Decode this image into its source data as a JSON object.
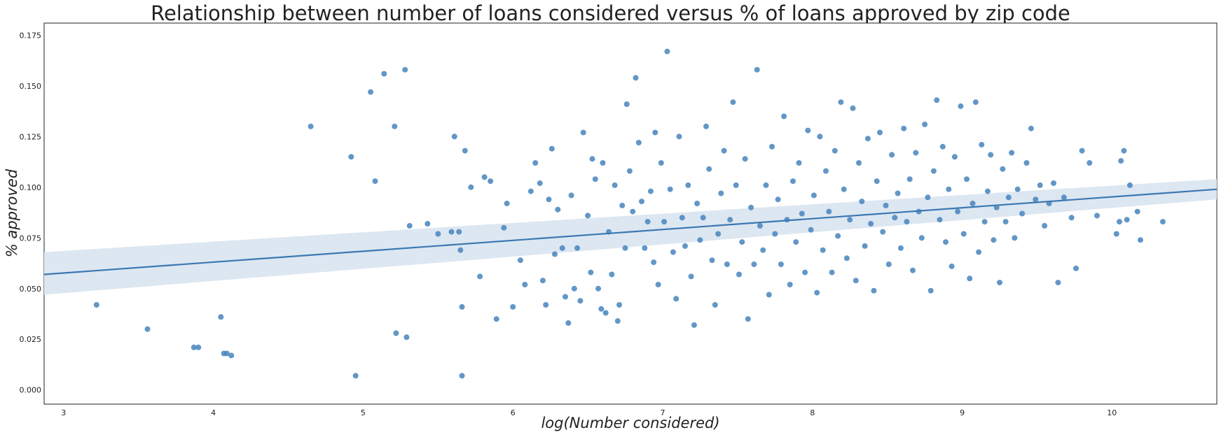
{
  "chart_data": {
    "type": "scatter",
    "title": "Relationship between number of loans considered versus % of loans approved by zip code",
    "xlabel": "log(Number considered)",
    "ylabel": "% approved",
    "xlim": [
      2.87,
      10.7
    ],
    "ylim": [
      -0.007,
      0.181
    ],
    "xticks": [
      "3",
      "4",
      "5",
      "6",
      "7",
      "8",
      "9",
      "10"
    ],
    "yticks": [
      "0.000",
      "0.025",
      "0.050",
      "0.075",
      "0.100",
      "0.125",
      "0.150",
      "0.175"
    ],
    "grid": false,
    "point_color": "#4c88bf",
    "line_color": "#3b78b2",
    "band_color": "#dde7f1",
    "regression": {
      "x": [
        2.87,
        10.7
      ],
      "y": [
        0.057,
        0.099
      ],
      "ci_lower": [
        0.047,
        0.094
      ],
      "ci_upper": [
        0.068,
        0.104
      ]
    },
    "series": [
      {
        "points": [
          [
            3.22,
            0.042
          ],
          [
            3.56,
            0.03
          ],
          [
            3.87,
            0.021
          ],
          [
            3.9,
            0.021
          ],
          [
            4.05,
            0.036
          ],
          [
            4.07,
            0.018
          ],
          [
            4.09,
            0.018
          ],
          [
            4.12,
            0.017
          ],
          [
            4.65,
            0.13
          ],
          [
            4.92,
            0.115
          ],
          [
            4.95,
            0.007
          ],
          [
            5.05,
            0.147
          ],
          [
            5.08,
            0.103
          ],
          [
            5.14,
            0.156
          ],
          [
            5.21,
            0.13
          ],
          [
            5.22,
            0.028
          ],
          [
            5.28,
            0.158
          ],
          [
            5.29,
            0.026
          ],
          [
            5.31,
            0.081
          ],
          [
            5.43,
            0.082
          ],
          [
            5.5,
            0.077
          ],
          [
            5.59,
            0.078
          ],
          [
            5.61,
            0.125
          ],
          [
            5.64,
            0.078
          ],
          [
            5.65,
            0.069
          ],
          [
            5.66,
            0.007
          ],
          [
            5.66,
            0.041
          ],
          [
            5.68,
            0.118
          ],
          [
            5.72,
            0.1
          ],
          [
            5.78,
            0.056
          ],
          [
            5.81,
            0.105
          ],
          [
            5.85,
            0.103
          ],
          [
            5.89,
            0.035
          ],
          [
            5.94,
            0.08
          ],
          [
            5.96,
            0.092
          ],
          [
            6.0,
            0.041
          ],
          [
            6.05,
            0.064
          ],
          [
            6.08,
            0.052
          ],
          [
            6.12,
            0.098
          ],
          [
            6.15,
            0.112
          ],
          [
            6.18,
            0.102
          ],
          [
            6.2,
            0.054
          ],
          [
            6.22,
            0.042
          ],
          [
            6.24,
            0.094
          ],
          [
            6.26,
            0.119
          ],
          [
            6.28,
            0.067
          ],
          [
            6.3,
            0.089
          ],
          [
            6.33,
            0.07
          ],
          [
            6.35,
            0.046
          ],
          [
            6.37,
            0.033
          ],
          [
            6.39,
            0.096
          ],
          [
            6.41,
            0.05
          ],
          [
            6.43,
            0.07
          ],
          [
            6.45,
            0.044
          ],
          [
            6.47,
            0.127
          ],
          [
            6.5,
            0.086
          ],
          [
            6.52,
            0.058
          ],
          [
            6.53,
            0.114
          ],
          [
            6.55,
            0.104
          ],
          [
            6.57,
            0.05
          ],
          [
            6.59,
            0.04
          ],
          [
            6.6,
            0.112
          ],
          [
            6.62,
            0.038
          ],
          [
            6.64,
            0.078
          ],
          [
            6.66,
            0.057
          ],
          [
            6.68,
            0.101
          ],
          [
            6.7,
            0.034
          ],
          [
            6.71,
            0.042
          ],
          [
            6.73,
            0.091
          ],
          [
            6.75,
            0.07
          ],
          [
            6.76,
            0.141
          ],
          [
            6.78,
            0.108
          ],
          [
            6.8,
            0.088
          ],
          [
            6.82,
            0.154
          ],
          [
            6.84,
            0.122
          ],
          [
            6.86,
            0.093
          ],
          [
            6.88,
            0.07
          ],
          [
            6.9,
            0.083
          ],
          [
            6.92,
            0.098
          ],
          [
            6.94,
            0.063
          ],
          [
            6.95,
            0.127
          ],
          [
            6.97,
            0.052
          ],
          [
            6.99,
            0.112
          ],
          [
            7.01,
            0.083
          ],
          [
            7.03,
            0.167
          ],
          [
            7.05,
            0.099
          ],
          [
            7.07,
            0.068
          ],
          [
            7.09,
            0.045
          ],
          [
            7.11,
            0.125
          ],
          [
            7.13,
            0.085
          ],
          [
            7.15,
            0.071
          ],
          [
            7.17,
            0.101
          ],
          [
            7.19,
            0.056
          ],
          [
            7.21,
            0.032
          ],
          [
            7.23,
            0.092
          ],
          [
            7.25,
            0.074
          ],
          [
            7.27,
            0.085
          ],
          [
            7.29,
            0.13
          ],
          [
            7.31,
            0.109
          ],
          [
            7.33,
            0.064
          ],
          [
            7.35,
            0.042
          ],
          [
            7.37,
            0.077
          ],
          [
            7.39,
            0.097
          ],
          [
            7.41,
            0.118
          ],
          [
            7.43,
            0.062
          ],
          [
            7.45,
            0.084
          ],
          [
            7.47,
            0.142
          ],
          [
            7.49,
            0.101
          ],
          [
            7.51,
            0.057
          ],
          [
            7.53,
            0.073
          ],
          [
            7.55,
            0.114
          ],
          [
            7.57,
            0.035
          ],
          [
            7.59,
            0.09
          ],
          [
            7.61,
            0.062
          ],
          [
            7.63,
            0.158
          ],
          [
            7.65,
            0.081
          ],
          [
            7.67,
            0.069
          ],
          [
            7.69,
            0.101
          ],
          [
            7.71,
            0.047
          ],
          [
            7.73,
            0.12
          ],
          [
            7.75,
            0.077
          ],
          [
            7.77,
            0.094
          ],
          [
            7.79,
            0.062
          ],
          [
            7.81,
            0.135
          ],
          [
            7.83,
            0.084
          ],
          [
            7.85,
            0.052
          ],
          [
            7.87,
            0.103
          ],
          [
            7.89,
            0.073
          ],
          [
            7.91,
            0.112
          ],
          [
            7.93,
            0.087
          ],
          [
            7.95,
            0.058
          ],
          [
            7.97,
            0.128
          ],
          [
            7.99,
            0.079
          ],
          [
            8.01,
            0.096
          ],
          [
            8.03,
            0.048
          ],
          [
            8.05,
            0.125
          ],
          [
            8.07,
            0.069
          ],
          [
            8.09,
            0.108
          ],
          [
            8.11,
            0.088
          ],
          [
            8.13,
            0.058
          ],
          [
            8.15,
            0.118
          ],
          [
            8.17,
            0.076
          ],
          [
            8.19,
            0.142
          ],
          [
            8.21,
            0.099
          ],
          [
            8.23,
            0.065
          ],
          [
            8.25,
            0.084
          ],
          [
            8.27,
            0.139
          ],
          [
            8.29,
            0.054
          ],
          [
            8.31,
            0.112
          ],
          [
            8.33,
            0.093
          ],
          [
            8.35,
            0.071
          ],
          [
            8.37,
            0.124
          ],
          [
            8.39,
            0.082
          ],
          [
            8.41,
            0.049
          ],
          [
            8.43,
            0.103
          ],
          [
            8.45,
            0.127
          ],
          [
            8.47,
            0.078
          ],
          [
            8.49,
            0.091
          ],
          [
            8.51,
            0.062
          ],
          [
            8.53,
            0.116
          ],
          [
            8.55,
            0.085
          ],
          [
            8.57,
            0.097
          ],
          [
            8.59,
            0.07
          ],
          [
            8.61,
            0.129
          ],
          [
            8.63,
            0.083
          ],
          [
            8.65,
            0.104
          ],
          [
            8.67,
            0.059
          ],
          [
            8.69,
            0.117
          ],
          [
            8.71,
            0.088
          ],
          [
            8.73,
            0.075
          ],
          [
            8.75,
            0.131
          ],
          [
            8.77,
            0.095
          ],
          [
            8.79,
            0.049
          ],
          [
            8.81,
            0.108
          ],
          [
            8.83,
            0.143
          ],
          [
            8.85,
            0.084
          ],
          [
            8.87,
            0.12
          ],
          [
            8.89,
            0.073
          ],
          [
            8.91,
            0.099
          ],
          [
            8.93,
            0.061
          ],
          [
            8.95,
            0.115
          ],
          [
            8.97,
            0.088
          ],
          [
            8.99,
            0.14
          ],
          [
            9.01,
            0.077
          ],
          [
            9.03,
            0.104
          ],
          [
            9.05,
            0.055
          ],
          [
            9.07,
            0.092
          ],
          [
            9.09,
            0.142
          ],
          [
            9.11,
            0.068
          ],
          [
            9.13,
            0.121
          ],
          [
            9.15,
            0.083
          ],
          [
            9.17,
            0.098
          ],
          [
            9.19,
            0.116
          ],
          [
            9.21,
            0.074
          ],
          [
            9.23,
            0.09
          ],
          [
            9.25,
            0.053
          ],
          [
            9.27,
            0.109
          ],
          [
            9.29,
            0.083
          ],
          [
            9.31,
            0.095
          ],
          [
            9.33,
            0.117
          ],
          [
            9.35,
            0.075
          ],
          [
            9.37,
            0.099
          ],
          [
            9.4,
            0.087
          ],
          [
            9.43,
            0.112
          ],
          [
            9.46,
            0.129
          ],
          [
            9.49,
            0.094
          ],
          [
            9.52,
            0.101
          ],
          [
            9.55,
            0.081
          ],
          [
            9.58,
            0.092
          ],
          [
            9.61,
            0.102
          ],
          [
            9.64,
            0.053
          ],
          [
            9.68,
            0.095
          ],
          [
            9.73,
            0.085
          ],
          [
            9.76,
            0.06
          ],
          [
            9.8,
            0.118
          ],
          [
            9.85,
            0.112
          ],
          [
            9.9,
            0.086
          ],
          [
            10.03,
            0.077
          ],
          [
            10.05,
            0.083
          ],
          [
            10.06,
            0.113
          ],
          [
            10.08,
            0.118
          ],
          [
            10.1,
            0.084
          ],
          [
            10.12,
            0.101
          ],
          [
            10.17,
            0.088
          ],
          [
            10.19,
            0.074
          ],
          [
            10.34,
            0.083
          ]
        ]
      }
    ]
  }
}
